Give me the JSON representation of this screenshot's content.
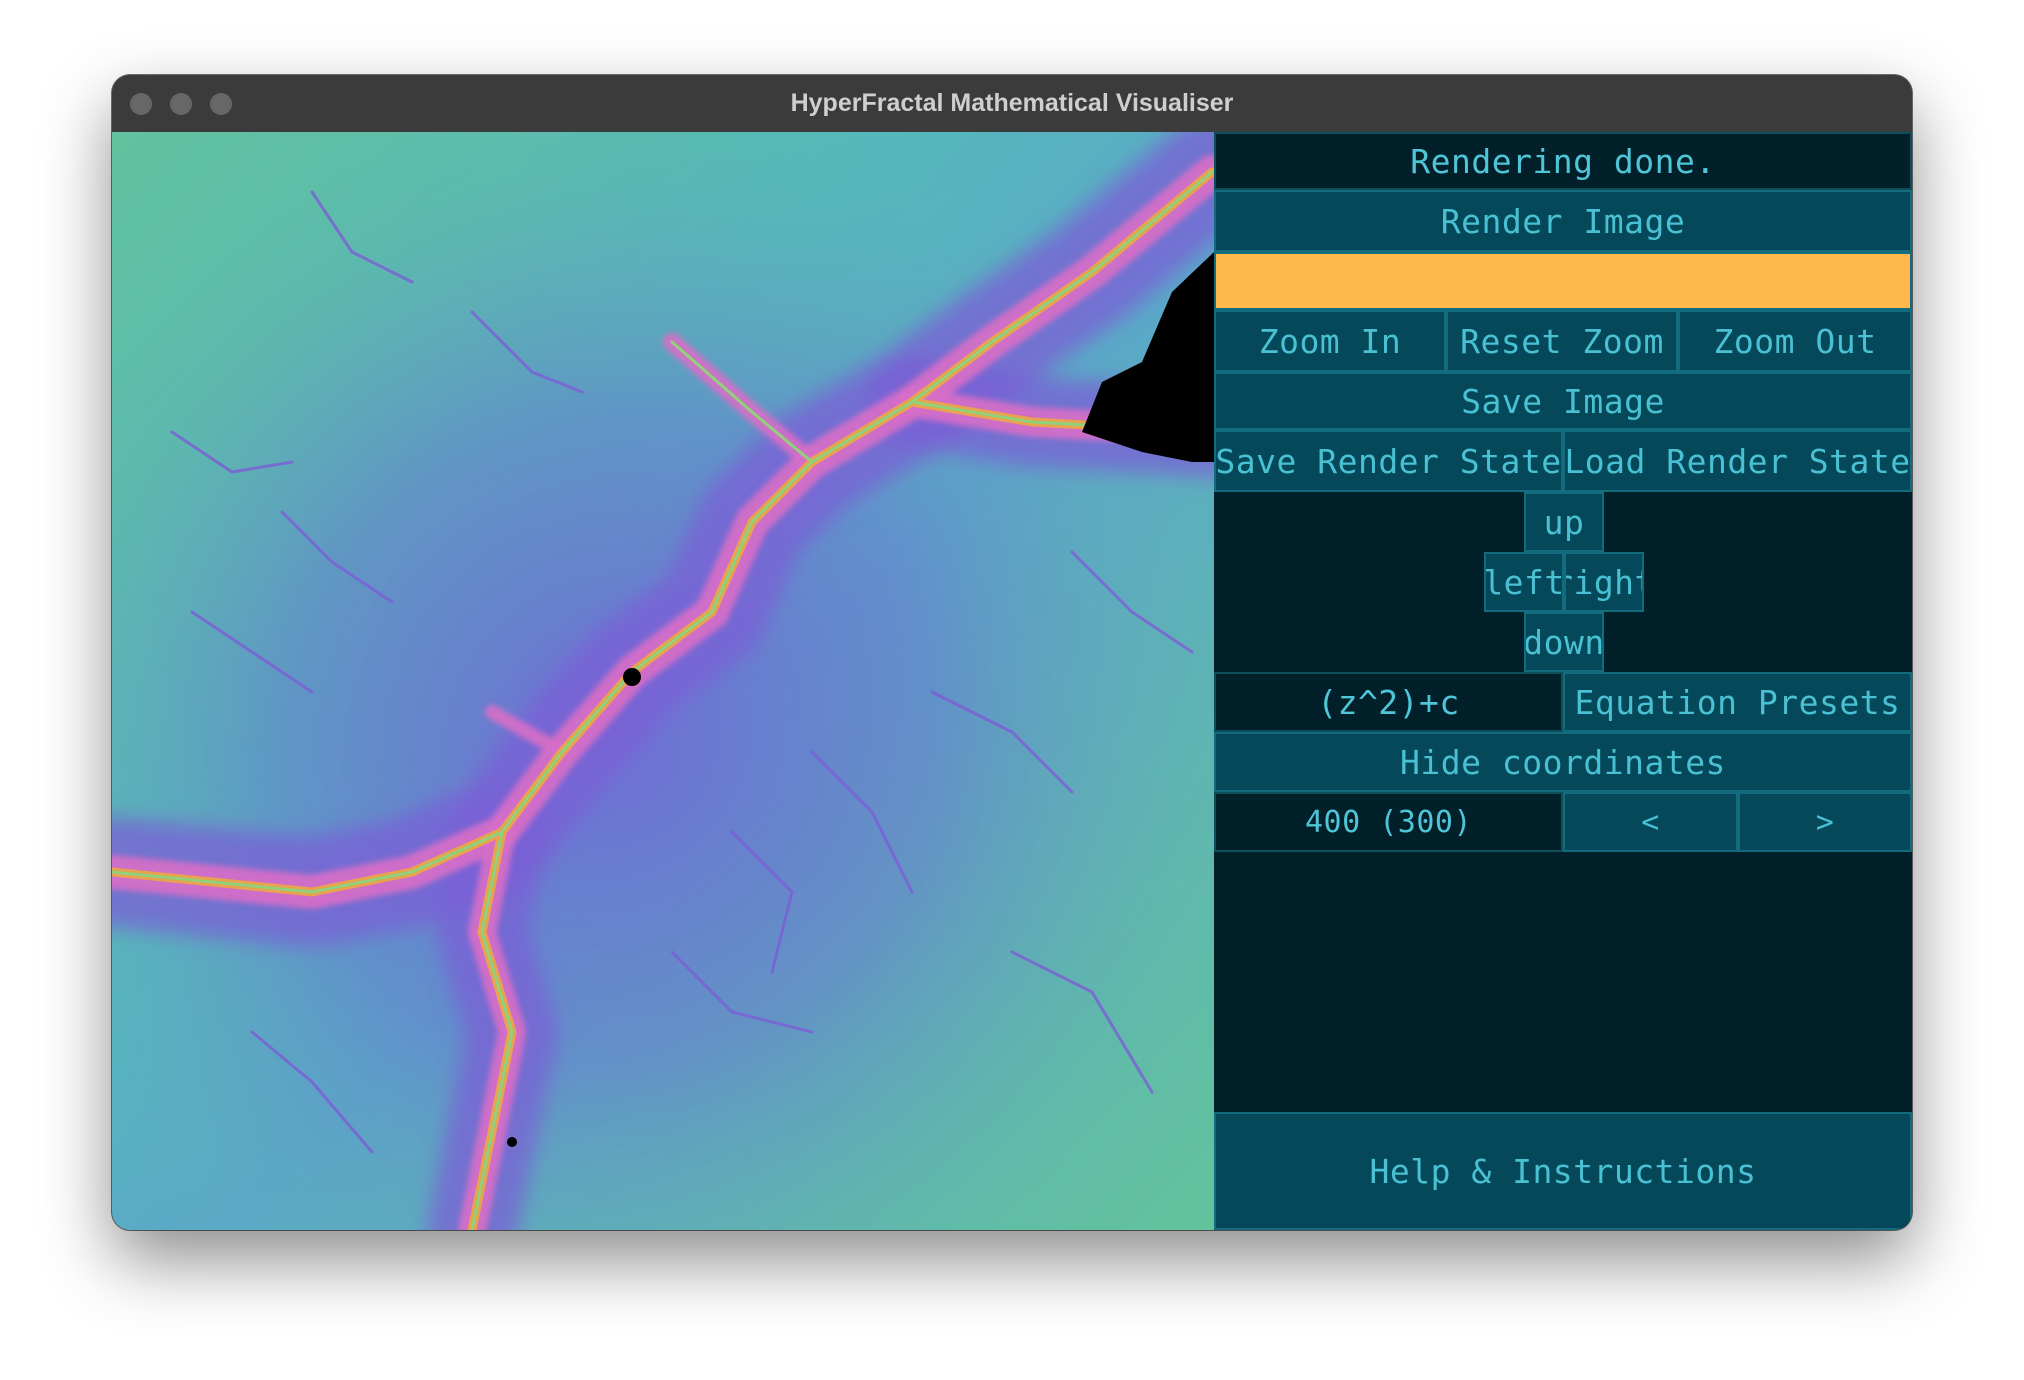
{
  "window": {
    "title": "HyperFractal Mathematical Visualiser"
  },
  "status": {
    "text": "Rendering done."
  },
  "buttons": {
    "render": "Render Image",
    "zoom_in": "Zoom In",
    "reset_zoom": "Reset Zoom",
    "zoom_out": "Zoom Out",
    "save_image": "Save Image",
    "save_state": "Save Render State",
    "load_state": "Load Render State",
    "up": "up",
    "left": "left",
    "right": "right",
    "down": "down",
    "equation_presets": "Equation Presets",
    "hide_coordinates": "Hide coordinates",
    "prev": "<",
    "next": ">",
    "help": "Help & Instructions"
  },
  "input": {
    "value": ""
  },
  "equation": {
    "value": "(z^2)+c"
  },
  "iterations": {
    "value": "400 (300)"
  },
  "colors": {
    "panel_bg": "#02202a",
    "button_bg": "#04485a",
    "button_text": "#49c1d3",
    "input_bg": "#fdb94e",
    "fractal_teal": "#5cbfae",
    "fractal_purple": "#7b67d4",
    "fractal_pink": "#d66fc8",
    "fractal_orange": "#f0a050"
  }
}
